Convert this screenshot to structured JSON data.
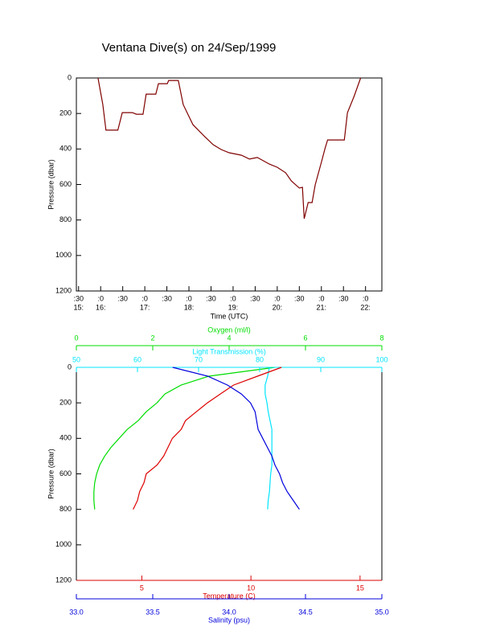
{
  "chart_data": [
    {
      "type": "line",
      "title": "Ventana Dive(s) on 24/Sep/1999",
      "xlabel": "Time (UTC)",
      "ylabel": "Pressure (dbar)",
      "color": "#800000",
      "xlim": [
        15.45,
        22.37
      ],
      "xticks": [
        {
          "value": 15.5,
          "label": ":30"
        },
        {
          "value": 16,
          "label": ":0"
        },
        {
          "value": 16.5,
          "label": ":30"
        },
        {
          "value": 17,
          "label": ":0"
        },
        {
          "value": 17.5,
          "label": ":30"
        },
        {
          "value": 18,
          "label": ":0"
        },
        {
          "value": 18.5,
          "label": ":30"
        },
        {
          "value": 19,
          "label": ":0"
        },
        {
          "value": 19.5,
          "label": ":30"
        },
        {
          "value": 20,
          "label": ":0"
        },
        {
          "value": 20.5,
          "label": ":30"
        },
        {
          "value": 21,
          "label": ":0"
        },
        {
          "value": 21.5,
          "label": ":30"
        },
        {
          "value": 22,
          "label": ":0"
        }
      ],
      "xtick_hours": [
        {
          "value": 15.5,
          "label": "15:"
        },
        {
          "value": 16,
          "label": "16:"
        },
        {
          "value": 17,
          "label": "17:"
        },
        {
          "value": 18,
          "label": "18:"
        },
        {
          "value": 19,
          "label": "19:"
        },
        {
          "value": 20,
          "label": "20:"
        },
        {
          "value": 21,
          "label": "21:"
        },
        {
          "value": 22,
          "label": "22:"
        }
      ],
      "ylim": [
        0,
        1200
      ],
      "y_reversed": true,
      "yticks": [
        0,
        200,
        400,
        600,
        800,
        1000,
        1200
      ],
      "x": [
        15.94,
        16.05,
        16.12,
        16.39,
        16.49,
        16.72,
        16.81,
        16.96,
        17.03,
        17.25,
        17.31,
        17.51,
        17.54,
        17.76,
        17.87,
        18.09,
        18.36,
        18.55,
        18.73,
        18.91,
        19.19,
        19.37,
        19.55,
        19.82,
        20.0,
        20.19,
        20.32,
        20.5,
        20.57,
        20.61,
        20.7,
        20.79,
        20.86,
        21.01,
        21.08,
        21.14,
        21.52,
        21.59,
        21.74,
        21.89
      ],
      "values": [
        0,
        150,
        294,
        294,
        195,
        195,
        204,
        204,
        91,
        91,
        32,
        32,
        14,
        14,
        150,
        263,
        331,
        376,
        403,
        421,
        435,
        457,
        448,
        485,
        503,
        534,
        580,
        620,
        616,
        793,
        702,
        702,
        602,
        466,
        399,
        349,
        349,
        195,
        104,
        0
      ]
    },
    {
      "type": "profile",
      "ylabel": "Pressure (dbar)",
      "ylim": [
        0,
        1200
      ],
      "y_reversed": true,
      "yticks": [
        0,
        200,
        400,
        600,
        800,
        1000,
        1200
      ],
      "pressure": [
        0,
        50,
        100,
        150,
        200,
        250,
        300,
        350,
        400,
        450,
        500,
        550,
        600,
        650,
        700,
        750,
        800
      ],
      "axes": [
        {
          "label": "Oxygen (ml/l)",
          "color": "#00dd00",
          "position": "top",
          "lim": [
            0,
            8
          ],
          "ticks": [
            0,
            2,
            4,
            6,
            8
          ],
          "values": [
            5.2,
            3.47,
            2.74,
            2.32,
            2.11,
            1.83,
            1.62,
            1.33,
            1.12,
            0.91,
            0.74,
            0.61,
            0.53,
            0.48,
            0.46,
            0.46,
            0.48
          ]
        },
        {
          "label": "Light Transmission (%)",
          "color": "#00e5ff",
          "position": "top",
          "lim": [
            50,
            100
          ],
          "ticks": [
            50,
            60,
            70,
            80,
            90,
            100
          ],
          "values": [
            81.6,
            81.3,
            80.9,
            80.9,
            81.2,
            81.4,
            81.7,
            82.0,
            82.0,
            82.0,
            82.0,
            82.0,
            81.8,
            81.7,
            81.6,
            81.4,
            81.3
          ]
        },
        {
          "label": "Temperature (C)",
          "color": "#dd0000",
          "position": "bottom",
          "lim": [
            2,
            16
          ],
          "ticks": [
            5,
            10,
            15
          ],
          "values": [
            11.4,
            10.3,
            9.2,
            8.6,
            8.0,
            7.5,
            7.0,
            6.8,
            6.4,
            6.2,
            6.0,
            5.7,
            5.2,
            5.1,
            4.9,
            4.8,
            4.6
          ]
        },
        {
          "label": "Salinity (psu)",
          "color": "#0000dd",
          "position": "bottom",
          "lim": [
            33,
            35
          ],
          "ticks": [
            {
              "value": 33,
              "label": "33.0"
            },
            33.5,
            {
              "value": 34,
              "label": "34.0"
            },
            34.5,
            {
              "value": 35,
              "label": "35.0"
            }
          ],
          "values": [
            33.63,
            33.86,
            33.99,
            34.08,
            34.14,
            34.17,
            34.18,
            34.19,
            34.22,
            34.25,
            34.28,
            34.3,
            34.33,
            34.35,
            34.38,
            34.42,
            34.46
          ]
        }
      ]
    }
  ]
}
